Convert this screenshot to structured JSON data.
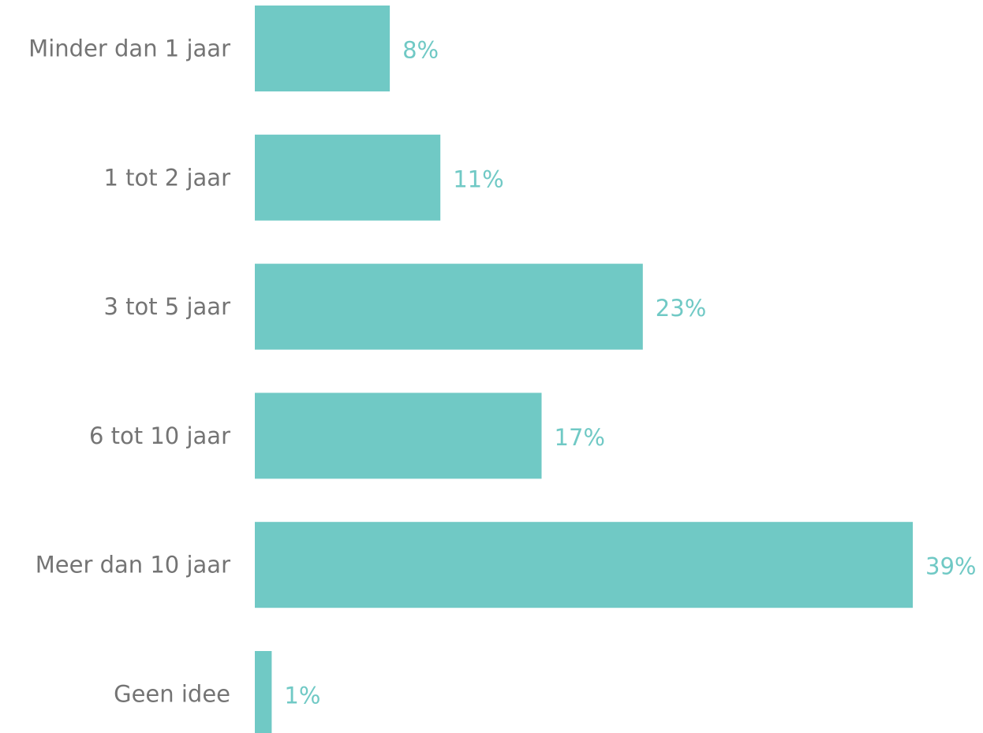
{
  "chart_data": {
    "type": "bar",
    "orientation": "horizontal",
    "categories": [
      "Minder dan 1 jaar",
      "1 tot 2 jaar",
      "3 tot 5 jaar",
      "6 tot 10 jaar",
      "Meer dan 10 jaar",
      "Geen idee"
    ],
    "values": [
      8,
      11,
      23,
      17,
      39,
      1
    ],
    "value_labels": [
      "8%",
      "11%",
      "23%",
      "17%",
      "39%",
      "1%"
    ],
    "unit": "%",
    "xlim": [
      0,
      39
    ],
    "grid": false,
    "legend": "none",
    "colors": {
      "bar": "#70C9C5",
      "value_label": "#70C9C5",
      "category_label": "#747474"
    }
  }
}
